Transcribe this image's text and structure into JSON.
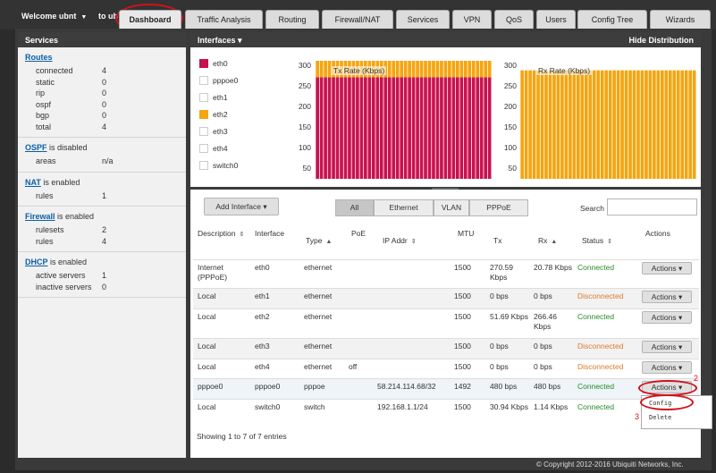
{
  "topbar": {
    "welcome": "Welcome ubnt",
    "to_text": "to ub",
    "tabs": [
      "Dashboard",
      "Traffic Analysis",
      "Routing",
      "Firewall/NAT",
      "Services",
      "VPN",
      "QoS",
      "Users",
      "Config Tree",
      "Wizards"
    ],
    "active_tab": "Dashboard"
  },
  "annotations": {
    "a1": "1",
    "a2": "2",
    "a3": "3"
  },
  "services": {
    "title": "Services",
    "routes": {
      "link": "Routes",
      "items": [
        [
          "connected",
          "4"
        ],
        [
          "static",
          "0"
        ],
        [
          "rip",
          "0"
        ],
        [
          "ospf",
          "0"
        ],
        [
          "bgp",
          "0"
        ],
        [
          "total",
          "4"
        ]
      ]
    },
    "ospf": {
      "link": "OSPF",
      "status": " is disabled",
      "items": [
        [
          "areas",
          "n/a"
        ]
      ]
    },
    "nat": {
      "link": "NAT",
      "status": " is enabled",
      "items": [
        [
          "rules",
          "1"
        ]
      ]
    },
    "firewall": {
      "link": "Firewall",
      "status": " is enabled",
      "items": [
        [
          "rulesets",
          "2"
        ],
        [
          "rules",
          "4"
        ]
      ]
    },
    "dhcp": {
      "link": "DHCP",
      "status": " is enabled",
      "items": [
        [
          "active servers",
          "1"
        ],
        [
          "inactive servers",
          "0"
        ]
      ]
    }
  },
  "interfaces_panel": {
    "title": "Interfaces",
    "hide": "Hide Distribution",
    "legend": [
      {
        "name": "eth0",
        "color": "#c8124f"
      },
      {
        "name": "pppoe0",
        "color": "#ffffff"
      },
      {
        "name": "eth1",
        "color": "#ffffff"
      },
      {
        "name": "eth2",
        "color": "#f4a511"
      },
      {
        "name": "eth3",
        "color": "#ffffff"
      },
      {
        "name": "eth4",
        "color": "#ffffff"
      },
      {
        "name": "switch0",
        "color": "#ffffff"
      }
    ]
  },
  "chart_data": [
    {
      "type": "area",
      "title": "Tx Rate (Kbps)",
      "yticks": [
        50,
        100,
        150,
        200,
        250,
        300
      ],
      "ylim": [
        25,
        310
      ],
      "series": [
        {
          "name": "eth0",
          "color": "#c8124f",
          "values": [
            270,
            270,
            270,
            270,
            270,
            270,
            270,
            270,
            270,
            270,
            270,
            270,
            270,
            270,
            270,
            270,
            270,
            270,
            270,
            270,
            270,
            270,
            270,
            270,
            270,
            270,
            270,
            270,
            270,
            270,
            270,
            270,
            270,
            270,
            270,
            270,
            270,
            270,
            270,
            270,
            270,
            270,
            270,
            270
          ]
        },
        {
          "name": "eth2",
          "color": "#f4a511",
          "values": [
            52,
            52,
            52,
            52,
            52,
            52,
            52,
            52,
            52,
            52,
            52,
            52,
            52,
            52,
            52,
            52,
            52,
            52,
            52,
            52,
            52,
            52,
            52,
            52,
            52,
            52,
            52,
            52,
            52,
            52,
            52,
            52,
            52,
            52,
            52,
            52,
            52,
            52,
            52,
            52,
            52,
            52,
            52,
            52
          ]
        }
      ]
    },
    {
      "type": "area",
      "title": "Rx Rate (Kbps)",
      "yticks": [
        50,
        100,
        150,
        200,
        250,
        300
      ],
      "ylim": [
        25,
        310
      ],
      "series": [
        {
          "name": "eth0",
          "color": "#c8124f",
          "values": [
            21,
            21,
            21,
            21,
            21,
            21,
            21,
            21,
            21,
            21,
            21,
            21,
            21,
            21,
            21,
            21,
            21,
            21,
            21,
            21,
            21,
            21,
            21,
            21,
            21,
            21,
            21,
            21,
            21,
            21,
            21,
            21,
            21,
            21,
            21,
            21,
            21,
            21,
            21,
            21,
            21,
            21,
            21,
            21
          ]
        },
        {
          "name": "eth2",
          "color": "#f4a511",
          "values": [
            266,
            266,
            266,
            266,
            266,
            266,
            266,
            266,
            266,
            266,
            266,
            266,
            266,
            266,
            266,
            266,
            266,
            266,
            266,
            266,
            266,
            266,
            266,
            266,
            266,
            266,
            266,
            266,
            266,
            266,
            266,
            266,
            266,
            266,
            266,
            266,
            266,
            266,
            266,
            266,
            266,
            266,
            266,
            266
          ]
        }
      ]
    }
  ],
  "table": {
    "add_interface": "Add Interface",
    "filters": [
      "All",
      "Ethernet",
      "VLAN",
      "PPPoE"
    ],
    "search_label": "Search",
    "headers": [
      "Description",
      "Interface",
      "Type",
      "PoE",
      "IP Addr",
      "MTU",
      "Tx",
      "Rx",
      "Status",
      "Actions"
    ],
    "rows": [
      [
        "Internet (PPPoE)",
        "eth0",
        "ethernet",
        "",
        "",
        "1500",
        "270.59 Kbps",
        "20.78 Kbps",
        "Connected"
      ],
      [
        "Local",
        "eth1",
        "ethernet",
        "",
        "",
        "1500",
        "0 bps",
        "0 bps",
        "Disconnected"
      ],
      [
        "Local",
        "eth2",
        "ethernet",
        "",
        "",
        "1500",
        "51.69 Kbps",
        "266.46 Kbps",
        "Connected"
      ],
      [
        "Local",
        "eth3",
        "ethernet",
        "",
        "",
        "1500",
        "0 bps",
        "0 bps",
        "Disconnected"
      ],
      [
        "Local",
        "eth4",
        "ethernet",
        "off",
        "",
        "1500",
        "0 bps",
        "0 bps",
        "Disconnected"
      ],
      [
        "pppoe0",
        "pppoe0",
        "pppoe",
        "",
        "58.214.114.68/32",
        "1492",
        "480 bps",
        "480 bps",
        "Connected"
      ],
      [
        "Local",
        "switch0",
        "switch",
        "",
        "192.168.1.1/24",
        "1500",
        "30.94 Kbps",
        "1.14 Kbps",
        "Connected"
      ]
    ],
    "action_label": "Actions",
    "menu": [
      "Config",
      "Delete"
    ],
    "showing": "Showing 1 to 7 of 7 entries"
  },
  "footer": {
    "copyright": "© Copyright 2012-2016 Ubiquiti Networks, Inc."
  }
}
